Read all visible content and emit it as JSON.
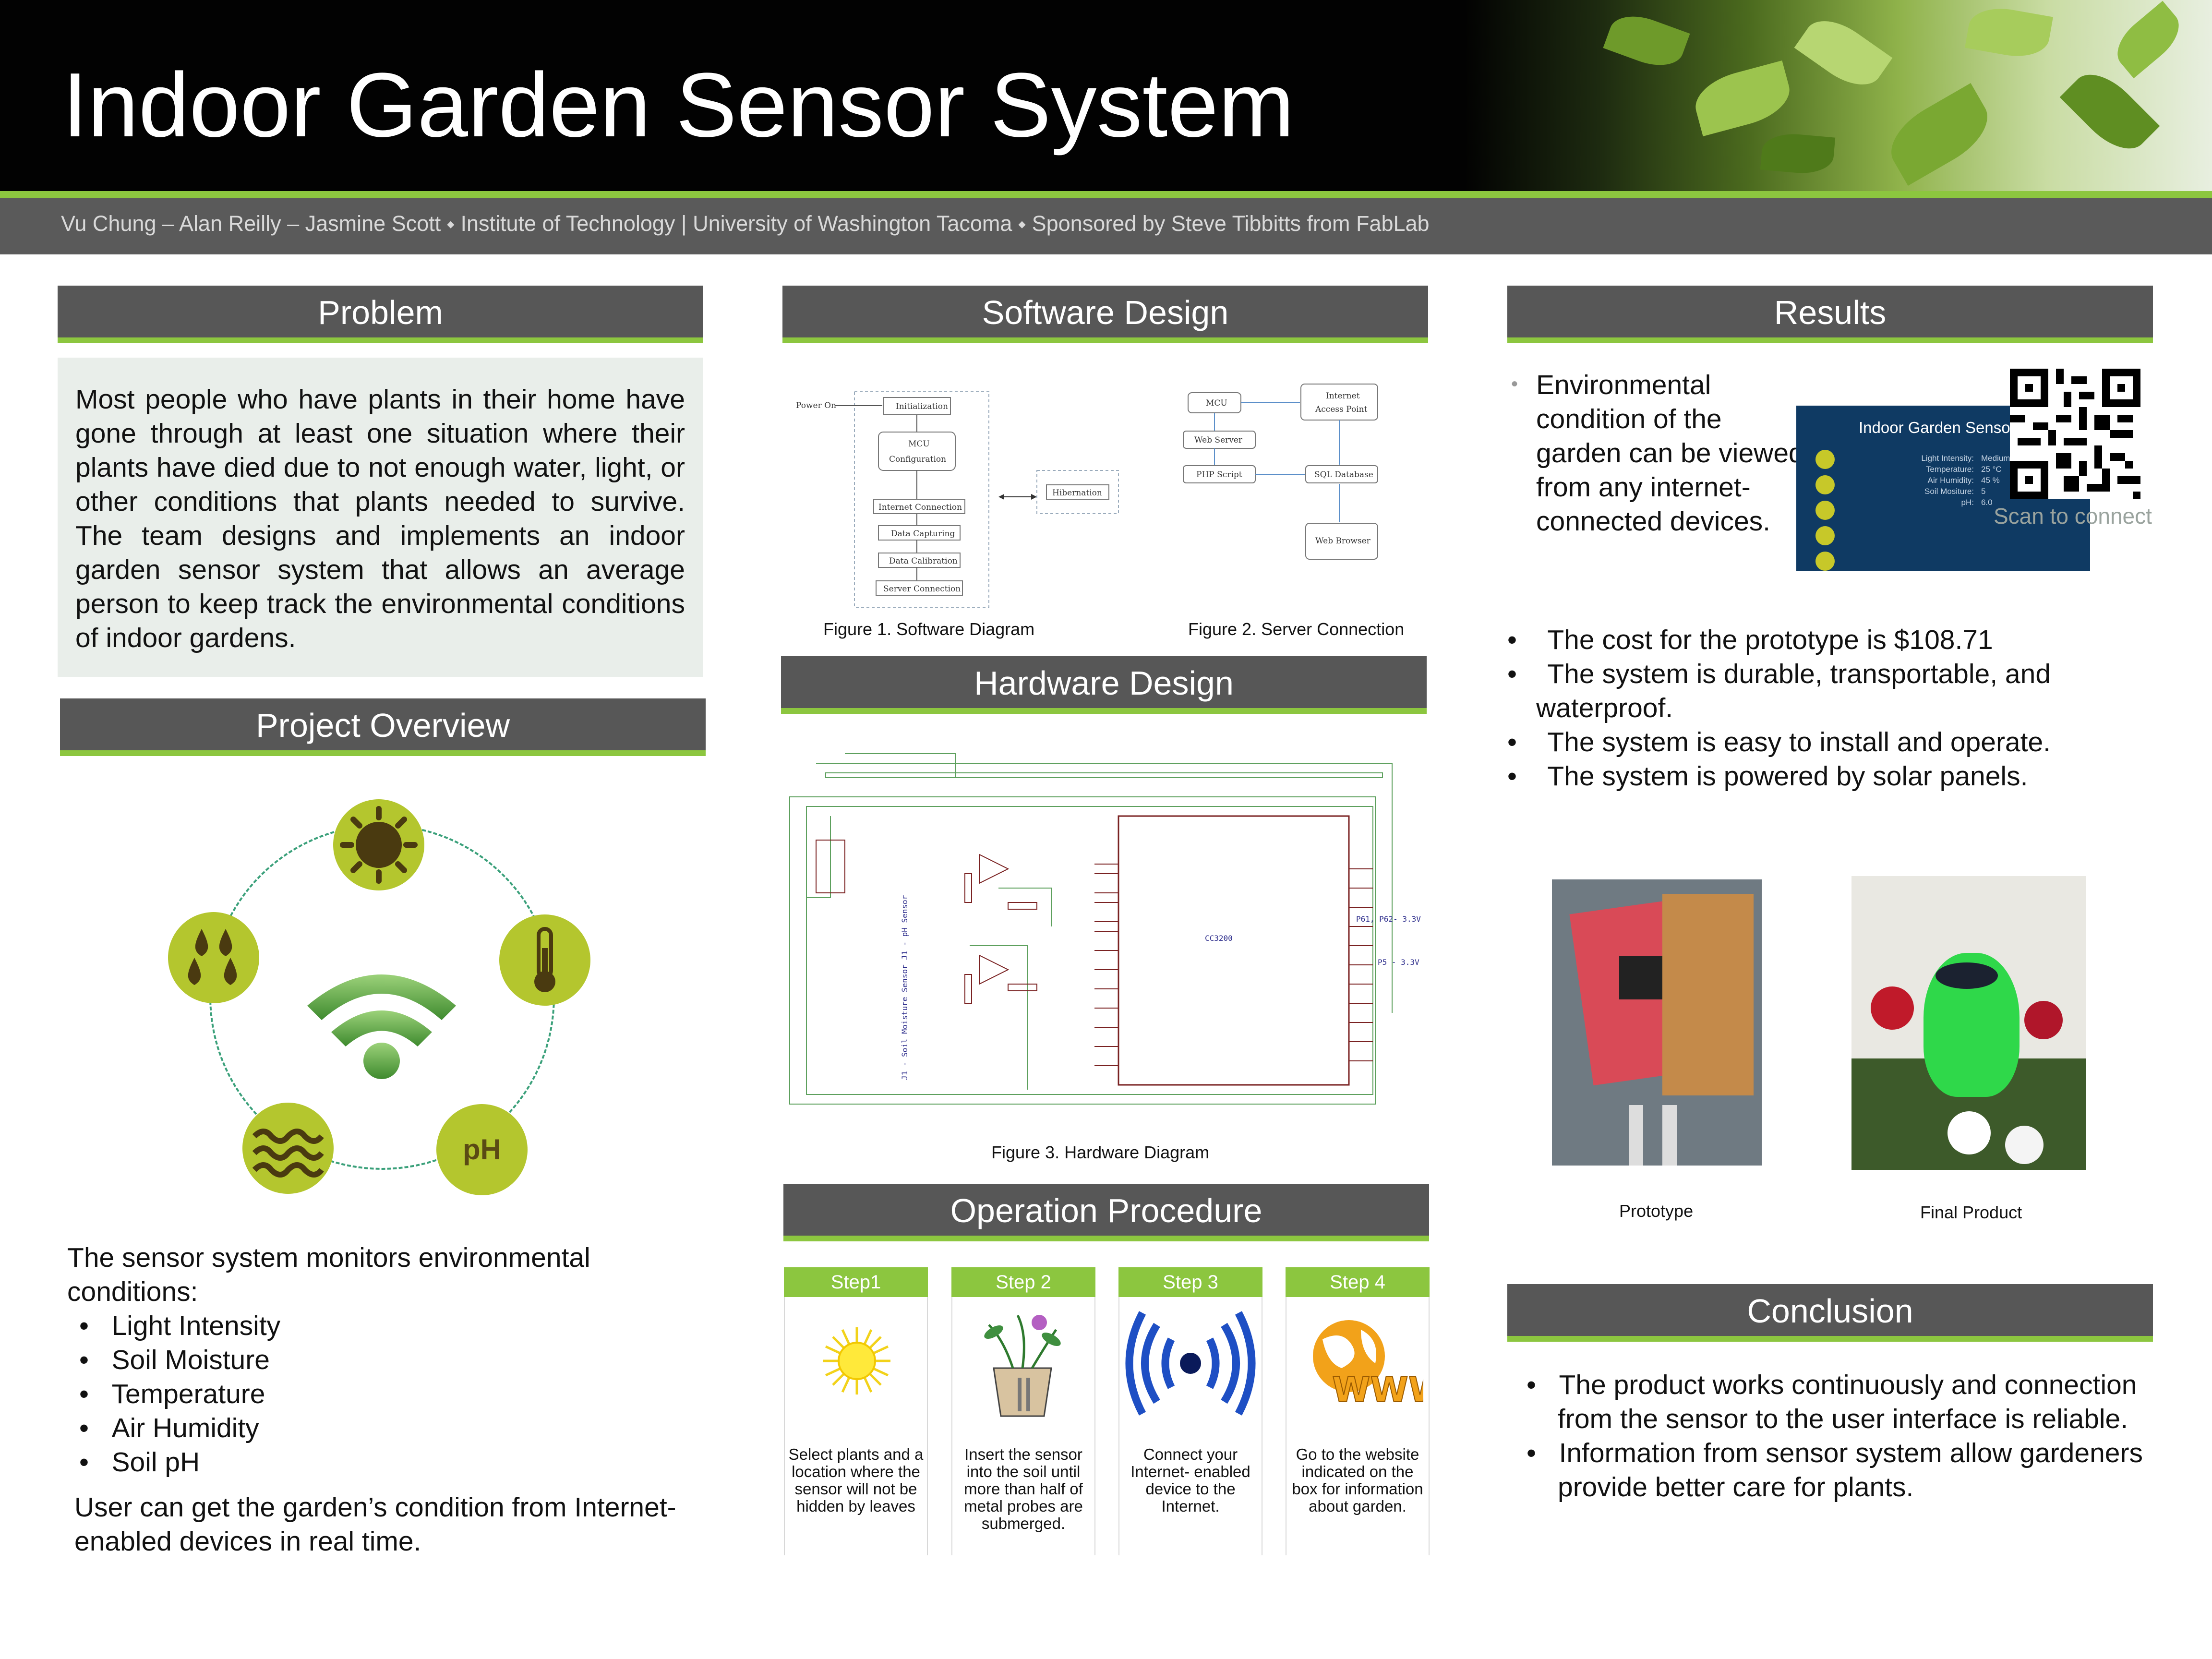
{
  "title": "Indoor Garden Sensor System",
  "authors": "Vu Chung – Alan Reilly – Jasmine Scott ⬩ Institute of Technology  | University of Washington Tacoma ⬩ Sponsored by Steve Tibbitts from FabLab",
  "problem": {
    "heading": "Problem",
    "text": "Most people who have plants in their home have gone through at least one situation where their plants have died due to not enough water, light, or other conditions that plants needed to survive. The team designs and implements an indoor garden sensor system that allows an average person to keep track the environmental conditions of indoor gardens."
  },
  "overview": {
    "heading": "Project Overview",
    "ph_label": "pH",
    "intro": "The sensor system monitors environmental conditions:",
    "items": [
      "Light Intensity",
      "Soil Moisture",
      "Temperature",
      "Air Humidity",
      "Soil pH"
    ],
    "closing": "User can get the garden’s condition from Internet-enabled devices in real time."
  },
  "software": {
    "heading": "Software Design",
    "fig1_caption": "Figure 1. Software Diagram",
    "fig2_caption": "Figure 2. Server Connection",
    "fig1": {
      "power_on": "Power On",
      "initialization": "Initialization",
      "mcu": "MCU",
      "configuration": "Configuration",
      "internet_connection": "Internet Connection",
      "data_capturing": "Data Capturing",
      "data_calibration": "Data Calibration",
      "server_connection": "Server Connection",
      "hibernation": "Hibernation"
    },
    "fig2": {
      "mcu": "MCU",
      "internet": "Internet",
      "access_point": "Access Point",
      "web_server": "Web Server",
      "php_script": "PHP Script",
      "sql_database": "SQL Database",
      "web_browser": "Web Browser"
    }
  },
  "hardware": {
    "heading": "Hardware Design",
    "fig3_caption": "Figure 3. Hardware Diagram",
    "chip_label": "CC3200",
    "label_p61": "P61, P62- 3.3V",
    "label_p5": "P5 - 3.3V",
    "label_sensors": "J1 - Soil Moisture Sensor   J1 - pH Sensor"
  },
  "operation": {
    "heading": "Operation Procedure",
    "steps": [
      {
        "title": "Step1",
        "text": "Select plants and a location where the sensor will not be hidden by leaves"
      },
      {
        "title": "Step 2",
        "text": "Insert the sensor into the soil until more than half of metal probes are submerged."
      },
      {
        "title": "Step 3",
        "text": "Connect your Internet- enabled device to the Internet."
      },
      {
        "title": "Step 4",
        "text": "Go to the website indicated on the box for information about garden."
      }
    ],
    "www_label": "WWW"
  },
  "results": {
    "heading": "Results",
    "first_item": "Environmental condition of the garden can be viewed from any internet-connected devices.",
    "screen_title": "Indoor Garden Senso",
    "screen_rows": [
      {
        "label": "Light Intensity:",
        "value": "Medium"
      },
      {
        "label": "Temperature:",
        "value": "25 °C"
      },
      {
        "label": "Air Humidity:",
        "value": "45 %"
      },
      {
        "label": "Soil Mositure:",
        "value": "5"
      },
      {
        "label": "pH:",
        "value": "6.0"
      }
    ],
    "scan_text": "Scan to connect",
    "items": [
      "The cost for the prototype is $108.71",
      "The system is durable, transportable, and waterproof.",
      "The system is easy to install and operate.",
      "The system is powered by solar panels."
    ],
    "prototype_caption": "Prototype",
    "final_caption": "Final Product"
  },
  "conclusion": {
    "heading": "Conclusion",
    "items": [
      "The product works continuously and connection from the sensor to the user interface is reliable.",
      " Information from sensor system allow gardeners provide better care for plants."
    ]
  },
  "colors": {
    "accent_green": "#8cc63f",
    "header_gray": "#575757",
    "icon_green": "#b4c62e"
  }
}
